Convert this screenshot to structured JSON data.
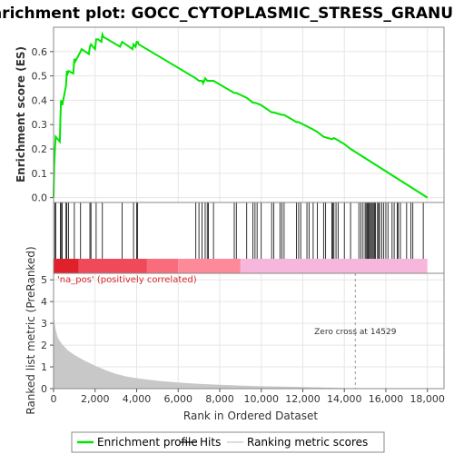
{
  "chart_data": {
    "type": "line",
    "title": "Enrichment plot: GOCC_CYTOPLASMIC_STRESS_GRANULE",
    "top_panel": {
      "ylabel": "Enrichment score (ES)",
      "ylim": [
        -0.02,
        0.7
      ],
      "yticks": [
        "0.0",
        "0.1",
        "0.2",
        "0.3",
        "0.4",
        "0.5",
        "0.6"
      ],
      "ytick_values": [
        0.0,
        0.1,
        0.2,
        0.3,
        0.4,
        0.5,
        0.6
      ],
      "series": [
        {
          "name": "Enrichment profile",
          "color": "#00e600",
          "x": [
            0,
            30,
            60,
            100,
            300,
            330,
            360,
            420,
            600,
            640,
            680,
            720,
            950,
            1000,
            1050,
            1300,
            1350,
            1700,
            1750,
            1800,
            2000,
            2050,
            2150,
            2300,
            2350,
            2400,
            3200,
            3300,
            3800,
            3850,
            3950,
            4000,
            4050,
            4100,
            6850,
            7000,
            7150,
            7200,
            7300,
            7400,
            7700,
            8700,
            8800,
            9300,
            9600,
            9700,
            10000,
            10500,
            10600,
            11000,
            11100,
            11700,
            11800,
            12500,
            12700,
            13000,
            13400,
            13500,
            13700,
            14000,
            14300,
            18000
          ],
          "y": [
            0.0,
            0.13,
            0.19,
            0.25,
            0.23,
            0.32,
            0.4,
            0.38,
            0.46,
            0.52,
            0.51,
            0.52,
            0.51,
            0.57,
            0.56,
            0.6,
            0.61,
            0.59,
            0.62,
            0.63,
            0.61,
            0.65,
            0.65,
            0.64,
            0.67,
            0.66,
            0.62,
            0.64,
            0.61,
            0.63,
            0.62,
            0.64,
            0.64,
            0.63,
            0.49,
            0.48,
            0.48,
            0.47,
            0.49,
            0.48,
            0.48,
            0.43,
            0.43,
            0.41,
            0.39,
            0.39,
            0.38,
            0.35,
            0.35,
            0.34,
            0.34,
            0.31,
            0.31,
            0.28,
            0.27,
            0.25,
            0.24,
            0.245,
            0.235,
            0.22,
            0.2,
            0.0
          ]
        }
      ]
    },
    "hits": {
      "name": "Hits",
      "color": "#000000",
      "x": [
        60,
        100,
        330,
        360,
        420,
        600,
        640,
        720,
        1000,
        1300,
        1750,
        1800,
        2050,
        2350,
        3300,
        3850,
        4000,
        4050,
        6850,
        7000,
        7150,
        7300,
        7400,
        7450,
        7700,
        8700,
        8800,
        9300,
        9600,
        9700,
        9800,
        10000,
        10500,
        10600,
        10900,
        11000,
        11100,
        11700,
        11800,
        11900,
        12200,
        12300,
        12500,
        12700,
        13000,
        13100,
        13400,
        13450,
        13500,
        13600,
        13700,
        14000,
        14300,
        14700,
        14800,
        14900,
        15000,
        15050,
        15100,
        15150,
        15200,
        15250,
        15300,
        15350,
        15400,
        15450,
        15500,
        15600,
        15650,
        15700,
        15800,
        15900,
        16000,
        16100,
        16300,
        16400,
        16550,
        16600,
        16700,
        17000,
        17200,
        17300,
        17800
      ]
    },
    "color_bar": {
      "label": "'na_pos' (positively correlated)",
      "segments": [
        {
          "from": 0,
          "to": 1200,
          "color": "#e0202a"
        },
        {
          "from": 1200,
          "to": 4500,
          "color": "#f04a5a"
        },
        {
          "from": 4500,
          "to": 6000,
          "color": "#f86c7c"
        },
        {
          "from": 6000,
          "to": 9000,
          "color": "#fc8a98"
        },
        {
          "from": 9000,
          "to": 18000,
          "color": "#f7b6dc"
        }
      ]
    },
    "bottom_panel": {
      "ylabel": "Ranked list metric (PreRanked)",
      "xlabel": "Rank in Ordered Dataset",
      "ylim": [
        0,
        5.3
      ],
      "yticks": [
        "0",
        "1",
        "2",
        "3",
        "4",
        "5"
      ],
      "ytick_values": [
        0,
        1,
        2,
        3,
        4,
        5
      ],
      "series": [
        {
          "name": "Ranking metric scores",
          "color": "#c8c8c8",
          "x": [
            0,
            50,
            100,
            200,
            400,
            700,
            1000,
            1500,
            2000,
            2500,
            3000,
            3500,
            4000,
            5000,
            6000,
            7000,
            8000,
            9000,
            10000,
            11000,
            12000,
            13000,
            14000,
            14529
          ],
          "y": [
            3.35,
            3.0,
            2.7,
            2.35,
            2.05,
            1.75,
            1.55,
            1.28,
            1.05,
            0.85,
            0.68,
            0.56,
            0.48,
            0.36,
            0.28,
            0.22,
            0.18,
            0.14,
            0.11,
            0.09,
            0.07,
            0.05,
            0.03,
            0.0
          ]
        }
      ],
      "annotation": "Zero cross at 14529",
      "zero_cross": 14529
    },
    "xlim": [
      0,
      18800
    ],
    "xticks": [
      "0",
      "2,000",
      "4,000",
      "6,000",
      "8,000",
      "10,000",
      "12,000",
      "14,000",
      "16,000",
      "18,000"
    ],
    "xtick_values": [
      0,
      2000,
      4000,
      6000,
      8000,
      10000,
      12000,
      14000,
      16000,
      18000
    ],
    "legend": {
      "placement": "bottom",
      "items": [
        {
          "label": "Enrichment profile",
          "color": "#00e600"
        },
        {
          "label": "Hits",
          "color": "#000000"
        },
        {
          "label": "Ranking metric scores",
          "color": "#c8c8c8"
        }
      ]
    }
  }
}
